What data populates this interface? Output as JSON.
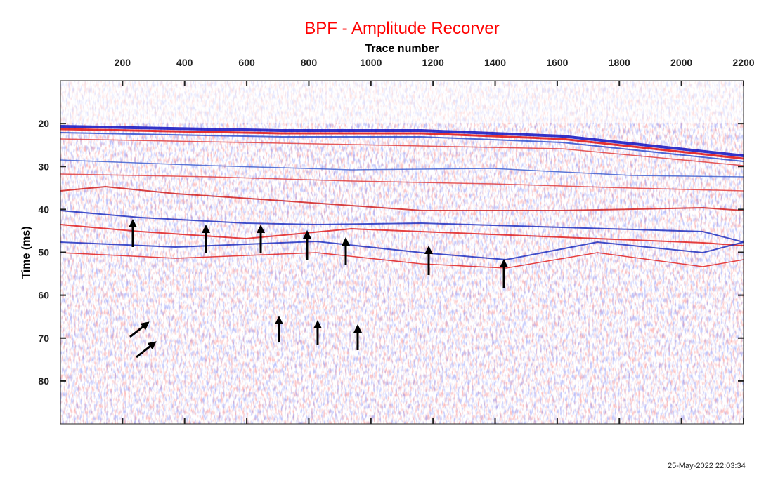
{
  "chart_data": {
    "type": "seismic",
    "title": "BPF - Amplitude Recorver",
    "x_label": "Trace number",
    "y_label": "Time (ms)",
    "timestamp": "25-May-2022 22:03:34",
    "xlim": [
      0,
      2200
    ],
    "xticks": [
      200,
      400,
      600,
      800,
      1000,
      1200,
      1400,
      1600,
      1800,
      2000,
      2200
    ],
    "ylim": [
      10,
      90
    ],
    "yticks": [
      20,
      30,
      40,
      50,
      60,
      70,
      80
    ],
    "title_color": "#ff0000"
  }
}
